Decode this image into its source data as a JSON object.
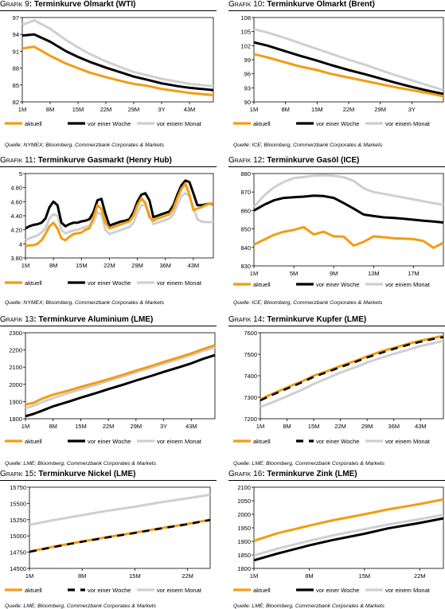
{
  "legend_labels": [
    "aktuell",
    "vor einer Woche",
    "vor einem Monat"
  ],
  "colors": {
    "aktuell": "#f39c12",
    "vor einer Woche": "#000000",
    "vor einem Monat": "#cfcfcf"
  },
  "sources": {
    "nymex": "Quelle: NYMEX; Bloomberg, Commerzbank Corporates & Markets",
    "ice": "Quelle: ICE; Bloomberg, Commerzbank Corporates & Markets",
    "lme": "Quelle: LME; Bloomberg, Commerzbank Corporates & Markets"
  },
  "chart_data": [
    {
      "type": "line",
      "prefix": "Grafik 9",
      "title": "Terminkurve Ölmarkt (WTI)",
      "x": [
        1,
        4,
        8,
        12,
        15,
        18,
        22,
        26,
        29,
        32,
        36,
        40,
        43,
        46,
        49
      ],
      "xticks": [
        1,
        8,
        15,
        22,
        29,
        36,
        43
      ],
      "xticklabels": [
        "1M",
        "8M",
        "15M",
        "22M",
        "29M",
        "3Y",
        "43M"
      ],
      "xlim": [
        1,
        49
      ],
      "ylim": [
        82,
        97
      ],
      "yticks": [
        82,
        85,
        88,
        91,
        94,
        97
      ],
      "series": [
        {
          "name": "aktuell",
          "values": [
            91.5,
            91.8,
            90.2,
            88.8,
            88.0,
            87.2,
            86.4,
            85.7,
            85.2,
            84.9,
            84.3,
            83.9,
            83.6,
            83.4,
            83.2
          ]
        },
        {
          "name": "vor einer Woche",
          "values": [
            93.8,
            94.0,
            92.7,
            91.0,
            90.0,
            89.1,
            88.1,
            87.2,
            86.5,
            86.0,
            85.3,
            84.8,
            84.5,
            84.3,
            84.1
          ]
        },
        {
          "name": "vor einem Monat",
          "values": [
            95.7,
            96.5,
            95.0,
            93.0,
            91.7,
            90.5,
            89.2,
            88.1,
            87.3,
            86.8,
            86.1,
            85.6,
            85.2,
            85.0,
            84.8
          ]
        }
      ],
      "source": "nymex"
    },
    {
      "type": "line",
      "prefix": "Grafik 10",
      "title": "Terminkurve Ölmarkt (Brent)",
      "x": [
        1,
        4,
        8,
        11,
        15,
        18,
        22,
        26,
        29,
        32,
        36,
        40,
        43
      ],
      "xticks": [
        1,
        8,
        15,
        22,
        29,
        36
      ],
      "xticklabels": [
        "1M",
        "8M",
        "15M",
        "22M",
        "29M",
        "3Y"
      ],
      "xlim": [
        1,
        43
      ],
      "ylim": [
        90,
        108
      ],
      "yticks": [
        90,
        93,
        96,
        99,
        102,
        105,
        108
      ],
      "series": [
        {
          "name": "aktuell",
          "values": [
            100.2,
            99.5,
            98.4,
            97.6,
            96.8,
            96.0,
            95.2,
            94.4,
            93.8,
            93.2,
            92.5,
            91.8,
            91.2
          ]
        },
        {
          "name": "vor einer Woche",
          "values": [
            102.7,
            102.0,
            100.8,
            99.9,
            98.8,
            97.9,
            96.8,
            95.8,
            95.0,
            94.2,
            93.2,
            92.3,
            91.7
          ]
        },
        {
          "name": "vor einem Monat",
          "values": [
            105.5,
            104.8,
            103.6,
            102.6,
            101.3,
            100.3,
            99.0,
            97.8,
            96.8,
            95.8,
            94.6,
            93.4,
            92.5
          ]
        }
      ],
      "source": "ice"
    },
    {
      "type": "line",
      "prefix": "Grafik 11",
      "title": "Terminkurve Gasmarkt (Henry Hub)",
      "x": [
        1,
        2,
        3,
        4,
        5,
        6,
        7,
        8,
        9,
        10,
        11,
        12,
        13,
        14,
        15,
        16,
        17,
        18,
        19,
        20,
        21,
        22,
        23,
        24,
        25,
        26,
        27,
        28,
        29,
        30,
        31,
        32,
        33,
        34,
        35,
        36,
        37,
        38,
        39,
        40,
        41,
        42,
        43,
        44,
        45,
        46,
        47,
        48
      ],
      "xticks": [
        1,
        8,
        15,
        22,
        29,
        36,
        43
      ],
      "xticklabels": [
        "1M",
        "8M",
        "15M",
        "22M",
        "29M",
        "36M",
        "43M"
      ],
      "xlim": [
        1,
        48
      ],
      "ylim": [
        3.8,
        5.0
      ],
      "yticks": [
        3.8,
        4.0,
        4.2,
        4.4,
        4.6,
        4.8,
        5.0
      ],
      "series": [
        {
          "name": "aktuell",
          "values": [
            3.97,
            3.98,
            3.98,
            4.0,
            4.05,
            4.14,
            4.25,
            4.3,
            4.22,
            4.08,
            4.05,
            4.1,
            4.14,
            4.15,
            4.16,
            4.2,
            4.22,
            4.38,
            4.55,
            4.5,
            4.3,
            4.22,
            4.24,
            4.26,
            4.28,
            4.3,
            4.32,
            4.4,
            4.55,
            4.65,
            4.58,
            4.38,
            4.33,
            4.36,
            4.38,
            4.4,
            4.42,
            4.5,
            4.65,
            4.78,
            4.86,
            4.7,
            4.48,
            4.5,
            4.52,
            4.55,
            4.57,
            4.58
          ]
        },
        {
          "name": "vor einer Woche",
          "values": [
            4.22,
            4.25,
            4.27,
            4.28,
            4.3,
            4.36,
            4.52,
            4.6,
            4.55,
            4.3,
            4.25,
            4.28,
            4.3,
            4.3,
            4.32,
            4.33,
            4.35,
            4.45,
            4.62,
            4.64,
            4.43,
            4.26,
            4.28,
            4.3,
            4.32,
            4.33,
            4.35,
            4.45,
            4.6,
            4.7,
            4.72,
            4.62,
            4.38,
            4.4,
            4.42,
            4.44,
            4.46,
            4.55,
            4.7,
            4.83,
            4.9,
            4.88,
            4.72,
            4.55,
            4.55,
            4.56,
            4.57,
            4.57
          ]
        },
        {
          "name": "vor einem Monat",
          "values": [
            4.05,
            4.08,
            4.1,
            4.12,
            4.16,
            4.22,
            4.36,
            4.42,
            4.4,
            4.2,
            4.15,
            4.17,
            4.19,
            4.2,
            4.22,
            4.24,
            4.26,
            4.3,
            4.45,
            4.42,
            4.2,
            4.14,
            4.16,
            4.18,
            4.2,
            4.22,
            4.24,
            4.3,
            4.45,
            4.55,
            4.55,
            4.42,
            4.28,
            4.3,
            4.32,
            4.34,
            4.36,
            4.42,
            4.55,
            4.68,
            4.72,
            4.68,
            4.52,
            4.35,
            4.32,
            4.31,
            4.31,
            4.31
          ]
        }
      ],
      "source": "nymex"
    },
    {
      "type": "line",
      "prefix": "Grafik 12",
      "title": "Terminkurve Gasöl (ICE)",
      "x": [
        1,
        2,
        3,
        4,
        5,
        6,
        7,
        8,
        9,
        10,
        11,
        12,
        13,
        14,
        15,
        16,
        17,
        18,
        19,
        20
      ],
      "xticks": [
        1,
        5,
        9,
        13,
        17
      ],
      "xticklabels": [
        "1M",
        "5M",
        "9M",
        "13M",
        "17M"
      ],
      "xlim": [
        1,
        20
      ],
      "ylim": [
        830,
        880
      ],
      "yticks": [
        830,
        840,
        850,
        860,
        870,
        880
      ],
      "series": [
        {
          "name": "aktuell",
          "values": [
            841.5,
            844.2,
            846.8,
            848.5,
            849.5,
            851.0,
            847.0,
            848.5,
            846.0,
            845.8,
            841.0,
            843.0,
            846.0,
            845.5,
            845.0,
            844.8,
            844.5,
            843.5,
            839.8,
            842.5
          ]
        },
        {
          "name": "vor einer Woche",
          "values": [
            860.0,
            863.0,
            865.5,
            866.8,
            867.2,
            867.5,
            868.0,
            867.8,
            866.8,
            864.0,
            861.0,
            857.8,
            857.0,
            856.3,
            856.0,
            855.5,
            855.0,
            854.5,
            854.0,
            853.5
          ]
        },
        {
          "name": "vor einem Monat",
          "values": [
            862.0,
            868.0,
            872.5,
            875.5,
            877.5,
            878.2,
            878.8,
            879.0,
            878.8,
            878.0,
            876.0,
            872.0,
            870.0,
            869.0,
            868.0,
            867.0,
            866.0,
            865.0,
            864.0,
            863.0
          ]
        }
      ],
      "source": "ice"
    },
    {
      "type": "line",
      "prefix": "Grafik 13",
      "title": "Terminkurve Aluminium (LME)",
      "x": [
        1,
        3,
        5,
        8,
        12,
        15,
        19,
        22,
        26,
        29,
        33,
        36,
        40,
        43,
        46,
        49
      ],
      "xticks": [
        1,
        8,
        15,
        22,
        29,
        36,
        43
      ],
      "xticklabels": [
        "1M",
        "8M",
        "15M",
        "22M",
        "29M",
        "3Y",
        "43M"
      ],
      "xlim": [
        1,
        49
      ],
      "ylim": [
        1800,
        2300
      ],
      "yticks": [
        1800,
        1900,
        2000,
        2100,
        2200,
        2300
      ],
      "series": [
        {
          "name": "aktuell",
          "values": [
            1883,
            1892,
            1915,
            1940,
            1965,
            1985,
            2010,
            2030,
            2058,
            2080,
            2108,
            2130,
            2158,
            2180,
            2205,
            2228
          ]
        },
        {
          "name": "vor einer Woche",
          "values": [
            1815,
            1828,
            1845,
            1872,
            1900,
            1922,
            1950,
            1972,
            2000,
            2022,
            2050,
            2072,
            2100,
            2122,
            2148,
            2170
          ]
        },
        {
          "name": "vor einem Monat",
          "values": [
            1860,
            1875,
            1895,
            1920,
            1950,
            1970,
            1998,
            2020,
            2048,
            2070,
            2098,
            2120,
            2148,
            2170,
            2195,
            2215
          ]
        }
      ],
      "source": "lme"
    },
    {
      "type": "line",
      "prefix": "Grafik 14",
      "title": "Terminkurve Kupfer (LME)",
      "x": [
        1,
        4,
        8,
        12,
        15,
        19,
        22,
        26,
        29,
        33,
        36,
        40,
        43,
        46,
        49
      ],
      "xticks": [
        1,
        8,
        15,
        22,
        29,
        36,
        43
      ],
      "xticklabels": [
        "1M",
        "8M",
        "15M",
        "22M",
        "29M",
        "36M",
        "43M"
      ],
      "xlim": [
        1,
        49
      ],
      "ylim": [
        7200,
        7600
      ],
      "yticks": [
        7200,
        7300,
        7400,
        7500,
        7600
      ],
      "series": [
        {
          "name": "aktuell",
          "values": [
            7290,
            7315,
            7345,
            7375,
            7400,
            7425,
            7445,
            7470,
            7490,
            7515,
            7530,
            7550,
            7563,
            7575,
            7585
          ]
        },
        {
          "name": "vor einer Woche",
          "values": [
            7285,
            7310,
            7340,
            7370,
            7395,
            7420,
            7440,
            7465,
            7485,
            7508,
            7525,
            7545,
            7558,
            7570,
            7580
          ]
        },
        {
          "name": "vor einem Monat",
          "values": [
            7255,
            7275,
            7305,
            7335,
            7362,
            7392,
            7415,
            7440,
            7462,
            7485,
            7502,
            7522,
            7538,
            7550,
            7562
          ]
        }
      ],
      "source": "lme"
    },
    {
      "type": "line",
      "prefix": "Grafik 15",
      "title": "Terminkurve Nickel (LME)",
      "x": [
        1,
        4,
        8,
        11,
        15,
        18,
        22,
        25
      ],
      "xticks": [
        1,
        8,
        15,
        22
      ],
      "xticklabels": [
        "1M",
        "8M",
        "15M",
        "22M"
      ],
      "xlim": [
        1,
        25
      ],
      "ylim": [
        14500,
        15750
      ],
      "yticks": [
        14500,
        14750,
        15000,
        15250,
        15500,
        15750
      ],
      "series": [
        {
          "name": "aktuell",
          "values": [
            14760,
            14830,
            14915,
            14975,
            15050,
            15110,
            15185,
            15250
          ]
        },
        {
          "name": "vor einer Woche",
          "values": [
            14755,
            14825,
            14910,
            14970,
            15045,
            15105,
            15180,
            15245
          ]
        },
        {
          "name": "vor einem Monat",
          "values": [
            15170,
            15240,
            15320,
            15380,
            15450,
            15510,
            15580,
            15635
          ]
        }
      ],
      "source": "lme"
    },
    {
      "type": "line",
      "prefix": "Grafik 16",
      "title": "Terminkurve Zink (LME)",
      "x": [
        1,
        4,
        8,
        11,
        15,
        18,
        22,
        25
      ],
      "xticks": [
        1,
        8,
        15,
        22
      ],
      "xticklabels": [
        "1M",
        "8M",
        "15M",
        "22M"
      ],
      "xlim": [
        1,
        25
      ],
      "ylim": [
        1800,
        2100
      ],
      "yticks": [
        1800,
        1850,
        1900,
        1950,
        2000,
        2050,
        2100
      ],
      "series": [
        {
          "name": "aktuell",
          "values": [
            1902,
            1930,
            1958,
            1978,
            2000,
            2018,
            2038,
            2055
          ]
        },
        {
          "name": "vor einer Woche",
          "values": [
            1830,
            1855,
            1885,
            1905,
            1928,
            1948,
            1968,
            1985
          ]
        },
        {
          "name": "vor einem Monat",
          "values": [
            1848,
            1873,
            1902,
            1922,
            1945,
            1962,
            1982,
            1998
          ]
        }
      ],
      "source": "lme"
    }
  ]
}
